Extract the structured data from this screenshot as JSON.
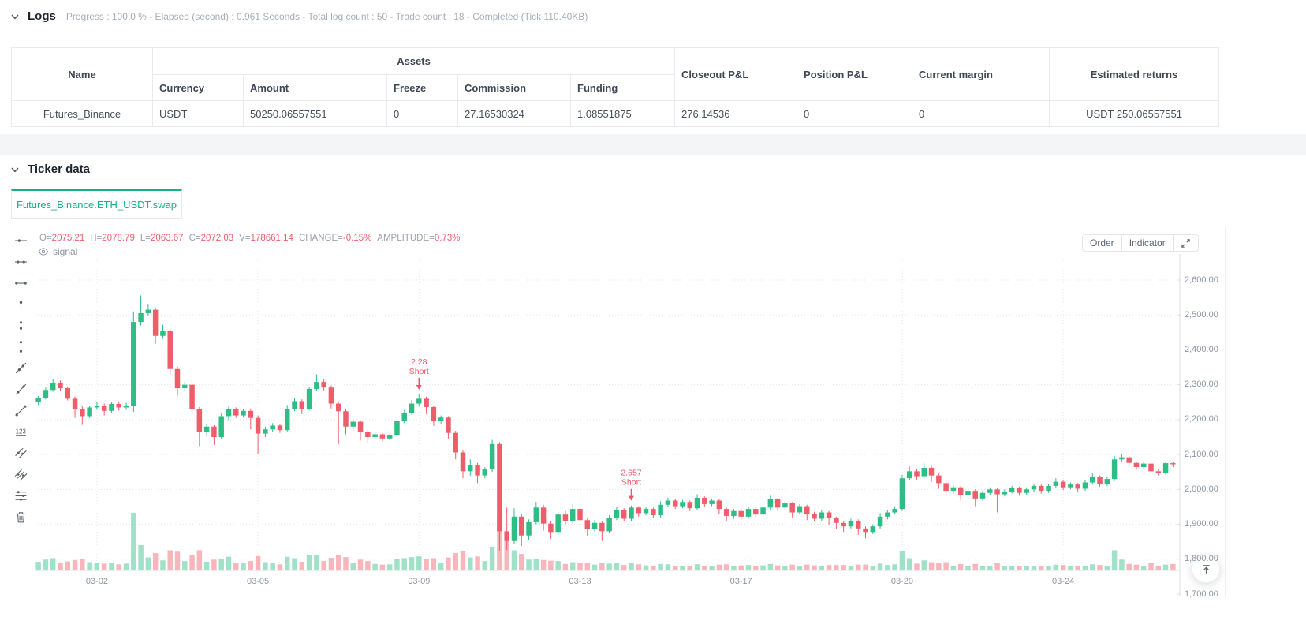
{
  "logs": {
    "title": "Logs",
    "meta": "Progress : 100.0 % - Elapsed (second) : 0.961  Seconds - Total log count : 50 - Trade count : 18 - Completed (Tick 110.40KB)"
  },
  "table": {
    "headers": {
      "name": "Name",
      "assets_group": "Assets",
      "sub": [
        "Currency",
        "Amount",
        "Freeze",
        "Commission",
        "Funding"
      ],
      "right": [
        "Closeout P&L",
        "Position P&L",
        "Current margin",
        "Estimated returns"
      ]
    },
    "rows": [
      [
        "Futures_Binance",
        "USDT",
        "50250.06557551",
        "0",
        "27.16530324",
        "1.08551875",
        "276.14536",
        "0",
        "0",
        "USDT 250.06557551"
      ]
    ]
  },
  "ticker": {
    "title": "Ticker data",
    "tab": "Futures_Binance.ETH_USDT.swap"
  },
  "chart": {
    "legend_items": [
      {
        "k": "O=",
        "v": "2075.21"
      },
      {
        "k": "H=",
        "v": "2078.79"
      },
      {
        "k": "L=",
        "v": "2063.67"
      },
      {
        "k": "C=",
        "v": "2072.03"
      },
      {
        "k": "V=",
        "v": "178661.14"
      },
      {
        "k": "CHANGE=",
        "v": "-0.15%"
      },
      {
        "k": "AMPLITUDE=",
        "v": "0.73%"
      }
    ],
    "overlay_label": "signal",
    "buttons": [
      "Order",
      "Indicator"
    ],
    "toolbar_icons": [
      "horizontal-ray",
      "horizontal-line",
      "horizontal-segment",
      "vertical-ray",
      "vertical-line",
      "vertical-segment",
      "trend-ray",
      "trend-line",
      "trend-segment",
      "price-note",
      "parallel-lines",
      "parallel-channel",
      "fib-retracement",
      "delete"
    ],
    "colors": {
      "up": "#2ebd85",
      "down": "#ef5d6b",
      "up_vol": "rgba(46,189,133,0.45)",
      "down_vol": "rgba(239,93,107,0.45)",
      "signal": "#e9596a",
      "grid": "#e2e6ec",
      "axis_line": "#dcdfe5",
      "accent": "#14b284"
    }
  },
  "chart_data": {
    "type": "candlestick",
    "symbol": "Futures_Binance.ETH_USDT.swap",
    "ylim": [
      1700,
      2600
    ],
    "grid": true,
    "y_ticks": [
      {
        "v": 2600,
        "label": "2,600.00"
      },
      {
        "v": 2500,
        "label": "2,500.00"
      },
      {
        "v": 2400,
        "label": "2,400.00"
      },
      {
        "v": 2300,
        "label": "2,300.00"
      },
      {
        "v": 2200,
        "label": "2,200.00"
      },
      {
        "v": 2100,
        "label": "2,100.00"
      },
      {
        "v": 2000,
        "label": "2,000.00"
      },
      {
        "v": 1900,
        "label": "1,900.00"
      },
      {
        "v": 1800,
        "label": "1,800.00"
      },
      {
        "v": 1700,
        "label": "1,700.00"
      }
    ],
    "x_ticks": [
      {
        "i": 8,
        "label": "03-02"
      },
      {
        "i": 30,
        "label": "03-05"
      },
      {
        "i": 52,
        "label": "03-09"
      },
      {
        "i": 74,
        "label": "03-13"
      },
      {
        "i": 96,
        "label": "03-17"
      },
      {
        "i": 118,
        "label": "03-20"
      },
      {
        "i": 140,
        "label": "03-24"
      }
    ],
    "vol_max_k": 1600,
    "signals": [
      {
        "i": 52,
        "lines": [
          "2.28",
          "Short"
        ],
        "side": "Short"
      },
      {
        "i": 81,
        "lines": [
          "2.657",
          "Short"
        ],
        "side": "Short"
      }
    ],
    "candles": [
      [
        2250,
        2268,
        2242,
        2262,
        240
      ],
      [
        2262,
        2292,
        2258,
        2285,
        300
      ],
      [
        2285,
        2316,
        2280,
        2305,
        340
      ],
      [
        2305,
        2312,
        2282,
        2290,
        220
      ],
      [
        2290,
        2295,
        2255,
        2260,
        250
      ],
      [
        2260,
        2266,
        2205,
        2230,
        290
      ],
      [
        2230,
        2238,
        2185,
        2210,
        320
      ],
      [
        2210,
        2240,
        2205,
        2235,
        230
      ],
      [
        2235,
        2252,
        2228,
        2240,
        200
      ],
      [
        2240,
        2246,
        2212,
        2225,
        190
      ],
      [
        2225,
        2250,
        2220,
        2245,
        210
      ],
      [
        2245,
        2252,
        2226,
        2235,
        170
      ],
      [
        2235,
        2248,
        2228,
        2240,
        190
      ],
      [
        2240,
        2510,
        2222,
        2480,
        1600
      ],
      [
        2480,
        2556,
        2470,
        2505,
        700
      ],
      [
        2505,
        2532,
        2498,
        2515,
        360
      ],
      [
        2515,
        2520,
        2418,
        2440,
        480
      ],
      [
        2440,
        2472,
        2432,
        2455,
        280
      ],
      [
        2455,
        2460,
        2328,
        2345,
        560
      ],
      [
        2345,
        2352,
        2268,
        2290,
        520
      ],
      [
        2290,
        2308,
        2282,
        2300,
        260
      ],
      [
        2300,
        2305,
        2214,
        2230,
        420
      ],
      [
        2230,
        2236,
        2124,
        2165,
        560
      ],
      [
        2165,
        2186,
        2152,
        2180,
        240
      ],
      [
        2180,
        2184,
        2128,
        2150,
        300
      ],
      [
        2150,
        2220,
        2145,
        2210,
        330
      ],
      [
        2210,
        2238,
        2198,
        2230,
        380
      ],
      [
        2230,
        2235,
        2205,
        2212,
        210
      ],
      [
        2212,
        2230,
        2206,
        2225,
        200
      ],
      [
        2225,
        2232,
        2172,
        2205,
        260
      ],
      [
        2205,
        2212,
        2102,
        2160,
        400
      ],
      [
        2160,
        2180,
        2150,
        2172,
        230
      ],
      [
        2172,
        2190,
        2165,
        2183,
        210
      ],
      [
        2183,
        2188,
        2162,
        2170,
        170
      ],
      [
        2170,
        2242,
        2166,
        2230,
        380
      ],
      [
        2230,
        2262,
        2224,
        2253,
        340
      ],
      [
        2253,
        2258,
        2216,
        2230,
        240
      ],
      [
        2230,
        2295,
        2226,
        2288,
        420
      ],
      [
        2288,
        2330,
        2282,
        2308,
        440
      ],
      [
        2308,
        2315,
        2284,
        2292,
        260
      ],
      [
        2292,
        2298,
        2232,
        2246,
        350
      ],
      [
        2246,
        2252,
        2130,
        2224,
        420
      ],
      [
        2224,
        2230,
        2158,
        2180,
        370
      ],
      [
        2180,
        2200,
        2172,
        2194,
        210
      ],
      [
        2194,
        2198,
        2140,
        2164,
        300
      ],
      [
        2164,
        2170,
        2134,
        2150,
        260
      ],
      [
        2150,
        2164,
        2142,
        2158,
        180
      ],
      [
        2158,
        2162,
        2138,
        2146,
        160
      ],
      [
        2146,
        2160,
        2140,
        2155,
        170
      ],
      [
        2155,
        2206,
        2150,
        2196,
        310
      ],
      [
        2196,
        2228,
        2190,
        2220,
        340
      ],
      [
        2220,
        2256,
        2214,
        2246,
        370
      ],
      [
        2246,
        2272,
        2240,
        2260,
        390
      ],
      [
        2260,
        2266,
        2216,
        2236,
        320
      ],
      [
        2236,
        2240,
        2182,
        2196,
        340
      ],
      [
        2196,
        2212,
        2188,
        2206,
        200
      ],
      [
        2206,
        2210,
        2146,
        2162,
        360
      ],
      [
        2162,
        2168,
        2086,
        2106,
        480
      ],
      [
        2106,
        2112,
        2032,
        2052,
        540
      ],
      [
        2052,
        2086,
        2040,
        2070,
        360
      ],
      [
        2070,
        2076,
        2018,
        2040,
        390
      ],
      [
        2040,
        2064,
        2032,
        2058,
        260
      ],
      [
        2058,
        2142,
        2050,
        2130,
        660
      ],
      [
        2130,
        2136,
        1824,
        1880,
        1480
      ],
      [
        1880,
        1948,
        1826,
        1852,
        820
      ],
      [
        1852,
        1946,
        1844,
        1922,
        560
      ],
      [
        1922,
        1930,
        1838,
        1868,
        460
      ],
      [
        1868,
        1914,
        1856,
        1906,
        300
      ],
      [
        1906,
        1964,
        1900,
        1948,
        330
      ],
      [
        1948,
        1956,
        1882,
        1902,
        290
      ],
      [
        1902,
        1910,
        1858,
        1878,
        270
      ],
      [
        1878,
        1936,
        1870,
        1928,
        260
      ],
      [
        1928,
        1938,
        1898,
        1908,
        180
      ],
      [
        1908,
        1958,
        1902,
        1944,
        230
      ],
      [
        1944,
        1952,
        1904,
        1912,
        200
      ],
      [
        1912,
        1918,
        1866,
        1886,
        210
      ],
      [
        1886,
        1912,
        1878,
        1904,
        160
      ],
      [
        1904,
        1910,
        1852,
        1880,
        200
      ],
      [
        1880,
        1926,
        1874,
        1918,
        190
      ],
      [
        1918,
        1950,
        1912,
        1940,
        200
      ],
      [
        1940,
        1946,
        1908,
        1916,
        150
      ],
      [
        1916,
        1954,
        1910,
        1948,
        220
      ],
      [
        1948,
        1952,
        1922,
        1932,
        170
      ],
      [
        1932,
        1950,
        1926,
        1944,
        140
      ],
      [
        1944,
        1948,
        1918,
        1926,
        130
      ],
      [
        1926,
        1966,
        1920,
        1956,
        180
      ],
      [
        1956,
        1976,
        1950,
        1968,
        170
      ],
      [
        1968,
        1972,
        1944,
        1952,
        130
      ],
      [
        1952,
        1970,
        1946,
        1964,
        130
      ],
      [
        1964,
        1968,
        1938,
        1946,
        120
      ],
      [
        1946,
        1986,
        1940,
        1976,
        170
      ],
      [
        1976,
        1980,
        1950,
        1958,
        130
      ],
      [
        1958,
        1974,
        1952,
        1968,
        120
      ],
      [
        1968,
        1972,
        1928,
        1944,
        160
      ],
      [
        1944,
        1948,
        1908,
        1924,
        170
      ],
      [
        1924,
        1944,
        1916,
        1938,
        120
      ],
      [
        1938,
        1944,
        1914,
        1922,
        140
      ],
      [
        1922,
        1950,
        1916,
        1944,
        150
      ],
      [
        1944,
        1950,
        1920,
        1928,
        130
      ],
      [
        1928,
        1954,
        1922,
        1948,
        140
      ],
      [
        1948,
        1982,
        1942,
        1972,
        180
      ],
      [
        1972,
        1976,
        1940,
        1948,
        140
      ],
      [
        1948,
        1966,
        1942,
        1960,
        120
      ],
      [
        1960,
        1964,
        1918,
        1934,
        160
      ],
      [
        1934,
        1958,
        1928,
        1952,
        130
      ],
      [
        1952,
        1956,
        1912,
        1930,
        160
      ],
      [
        1930,
        1936,
        1908,
        1916,
        140
      ],
      [
        1916,
        1940,
        1910,
        1934,
        120
      ],
      [
        1934,
        1938,
        1898,
        1918,
        150
      ],
      [
        1918,
        1922,
        1886,
        1904,
        150
      ],
      [
        1904,
        1910,
        1878,
        1894,
        150
      ],
      [
        1894,
        1916,
        1888,
        1910,
        120
      ],
      [
        1910,
        1914,
        1870,
        1888,
        160
      ],
      [
        1888,
        1894,
        1860,
        1878,
        160
      ],
      [
        1878,
        1900,
        1872,
        1894,
        130
      ],
      [
        1894,
        1932,
        1888,
        1922,
        190
      ],
      [
        1922,
        1940,
        1914,
        1934,
        150
      ],
      [
        1934,
        1952,
        1928,
        1944,
        170
      ],
      [
        1944,
        2042,
        1938,
        2032,
        540
      ],
      [
        2032,
        2066,
        2026,
        2052,
        340
      ],
      [
        2052,
        2058,
        2028,
        2038,
        190
      ],
      [
        2038,
        2076,
        2032,
        2062,
        280
      ],
      [
        2062,
        2068,
        2022,
        2040,
        230
      ],
      [
        2040,
        2046,
        2002,
        2018,
        220
      ],
      [
        2018,
        2024,
        1978,
        1996,
        230
      ],
      [
        1996,
        2012,
        1988,
        2006,
        130
      ],
      [
        2006,
        2010,
        1968,
        1984,
        180
      ],
      [
        1984,
        2002,
        1978,
        1996,
        120
      ],
      [
        1996,
        2000,
        1952,
        1974,
        180
      ],
      [
        1974,
        1996,
        1968,
        1990,
        130
      ],
      [
        1990,
        2006,
        1984,
        2000,
        130
      ],
      [
        2000,
        2004,
        1934,
        1986,
        210
      ],
      [
        1986,
        2000,
        1980,
        1994,
        110
      ],
      [
        1994,
        2010,
        1988,
        2004,
        120
      ],
      [
        2004,
        2008,
        1982,
        1990,
        110
      ],
      [
        1990,
        2006,
        1984,
        2000,
        110
      ],
      [
        2000,
        2016,
        1994,
        2010,
        120
      ],
      [
        2010,
        2014,
        1988,
        1996,
        110
      ],
      [
        1996,
        2016,
        1990,
        2010,
        120
      ],
      [
        2010,
        2032,
        2004,
        2022,
        160
      ],
      [
        2022,
        2026,
        1998,
        2006,
        150
      ],
      [
        2006,
        2020,
        2000,
        2014,
        110
      ],
      [
        2014,
        2018,
        1994,
        2002,
        110
      ],
      [
        2002,
        2026,
        1996,
        2020,
        130
      ],
      [
        2020,
        2046,
        2014,
        2036,
        170
      ],
      [
        2036,
        2040,
        2008,
        2016,
        150
      ],
      [
        2016,
        2036,
        2010,
        2030,
        130
      ],
      [
        2030,
        2096,
        2024,
        2086,
        560
      ],
      [
        2086,
        2102,
        2078,
        2092,
        300
      ],
      [
        2092,
        2096,
        2068,
        2076,
        180
      ],
      [
        2076,
        2080,
        2056,
        2064,
        160
      ],
      [
        2064,
        2080,
        2058,
        2074,
        120
      ],
      [
        2074,
        2078,
        2038,
        2052,
        200
      ],
      [
        2052,
        2058,
        2040,
        2046,
        120
      ],
      [
        2046,
        2078,
        2042,
        2075.21,
        160
      ],
      [
        2075.21,
        2078.79,
        2063.67,
        2072.03,
        179
      ]
    ]
  },
  "misc": {
    "back_to_top_icon": "arrow-up-to-line"
  }
}
